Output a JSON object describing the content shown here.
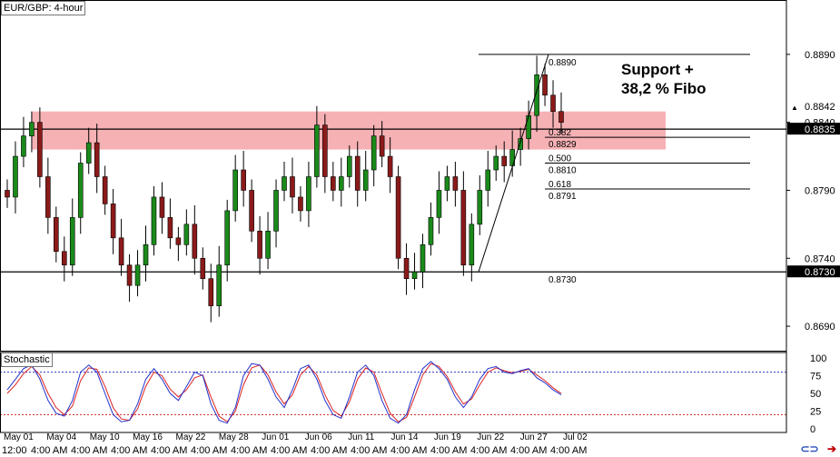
{
  "symbol_label": "EUR/GBP: 4-hour",
  "indicator_label": "Stochastic",
  "annotation": {
    "line1": "Support +",
    "line2": "38,2 % Fibo"
  },
  "colors": {
    "zone": "#f4a3a8",
    "bull": "#1a8a1a",
    "bear": "#8b1a1a",
    "stoch_main": "#2233cc",
    "stoch_signal": "#dd2222",
    "level_80": "#3333bb",
    "level_20": "#cc2222"
  },
  "icons": {
    "link": "link-icon",
    "arrow": "arrow-icon"
  },
  "chart_data": {
    "type": "candlestick",
    "price_axis": {
      "ticks": [
        "0.8890",
        "0.8840",
        "0.8790",
        "0.8740",
        "0.8690"
      ],
      "tick_values": [
        0.889,
        0.884,
        0.879,
        0.874,
        0.869
      ],
      "range": [
        0.8672,
        0.893
      ],
      "current_price_labels": [
        "0.8842",
        "0.8835"
      ],
      "level_labels": [
        "0.8730"
      ]
    },
    "date_labels": [
      "May 01",
      "May 04",
      "May 10",
      "May 16",
      "May 22",
      "May 28",
      "Jun 01",
      "Jun 06",
      "Jun 11",
      "Jun 14",
      "Jun 19",
      "Jun 22",
      "Jun 27",
      "Jul 02"
    ],
    "time_labels": [
      "12:00",
      "4:00 AM",
      "4:00 AM",
      "4:00 AM",
      "4:00 AM",
      "4:00 AM",
      "4:00 AM",
      "4:00 AM",
      "4:00 AM",
      "4:00 AM",
      "4:00 AM",
      "4:00 AM",
      "4:00 AM",
      "4:00 AM",
      "4:00 AM"
    ],
    "horizontal_lines": [
      {
        "name": "resistance-line",
        "price": 0.8835
      },
      {
        "name": "support-line",
        "price": 0.873
      }
    ],
    "zone": {
      "top": 0.8848,
      "bottom": 0.882
    },
    "fibonacci": {
      "low": 0.873,
      "high": 0.889,
      "levels": [
        {
          "ratio": "",
          "price": 0.889,
          "label": "0.8890"
        },
        {
          "ratio": "0.382",
          "price": 0.8829,
          "label": "0.8829"
        },
        {
          "ratio": "0.500",
          "price": 0.881,
          "label": "0.8810"
        },
        {
          "ratio": "0.618",
          "price": 0.8791,
          "label": "0.8791"
        },
        {
          "ratio": "",
          "price": 0.873,
          "label": "0.8730"
        }
      ]
    },
    "candles_close_path": [
      0.8785,
      0.8815,
      0.883,
      0.884,
      0.88,
      0.877,
      0.8745,
      0.8735,
      0.877,
      0.881,
      0.8825,
      0.88,
      0.878,
      0.8755,
      0.8735,
      0.872,
      0.8735,
      0.875,
      0.8785,
      0.877,
      0.8755,
      0.875,
      0.8765,
      0.874,
      0.8725,
      0.8705,
      0.8735,
      0.8775,
      0.8805,
      0.879,
      0.876,
      0.874,
      0.876,
      0.879,
      0.88,
      0.8785,
      0.8775,
      0.88,
      0.8838,
      0.88,
      0.879,
      0.88,
      0.8815,
      0.879,
      0.8805,
      0.883,
      0.8815,
      0.88,
      0.874,
      0.8725,
      0.873,
      0.875,
      0.877,
      0.879,
      0.88,
      0.879,
      0.8735,
      0.8765,
      0.879,
      0.8805,
      0.8815,
      0.8808,
      0.882,
      0.8828,
      0.8845,
      0.8875,
      0.886,
      0.8848,
      0.884
    ],
    "stochastic": {
      "axis_ticks": [
        "100",
        "75",
        "50",
        "25",
        "0"
      ],
      "levels": [
        80,
        20
      ],
      "main": [
        55,
        70,
        85,
        90,
        70,
        40,
        22,
        18,
        40,
        80,
        90,
        80,
        50,
        20,
        10,
        12,
        35,
        70,
        85,
        70,
        50,
        40,
        60,
        80,
        75,
        35,
        12,
        8,
        30,
        75,
        92,
        90,
        70,
        45,
        30,
        55,
        85,
        90,
        70,
        40,
        20,
        15,
        45,
        80,
        90,
        75,
        40,
        15,
        8,
        20,
        55,
        85,
        95,
        85,
        70,
        45,
        30,
        45,
        70,
        85,
        88,
        80,
        78,
        82,
        85,
        72,
        65,
        55,
        48
      ],
      "signal": [
        50,
        62,
        78,
        88,
        76,
        50,
        30,
        20,
        32,
        68,
        86,
        84,
        60,
        30,
        14,
        12,
        28,
        60,
        80,
        75,
        56,
        45,
        55,
        72,
        76,
        45,
        18,
        10,
        25,
        62,
        86,
        90,
        76,
        52,
        35,
        48,
        76,
        88,
        76,
        48,
        26,
        18,
        38,
        70,
        86,
        80,
        50,
        22,
        10,
        16,
        45,
        76,
        92,
        88,
        74,
        52,
        35,
        42,
        62,
        80,
        86,
        82,
        79,
        81,
        84,
        76,
        68,
        58,
        50
      ]
    }
  }
}
